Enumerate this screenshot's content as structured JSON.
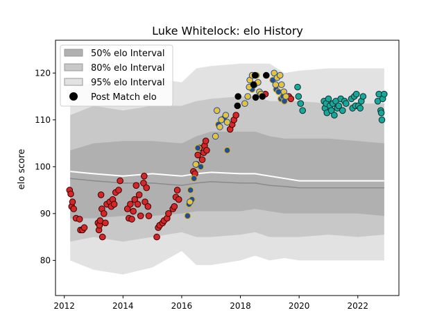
{
  "chart_data": {
    "type": "scatter",
    "title": "Luke Whitelock: elo History",
    "xlabel": "",
    "ylabel": "elo score",
    "xlim": [
      2011.7,
      2023.4
    ],
    "ylim": [
      72.5,
      127.0
    ],
    "x_ticks": [
      2012,
      2014,
      2016,
      2018,
      2020,
      2022
    ],
    "y_ticks": [
      80,
      90,
      100,
      110,
      120
    ],
    "legend": {
      "placement": "top-left",
      "entries": [
        "50% elo Interval",
        "80% elo Interval",
        "95% elo Interval",
        "Post Match elo"
      ]
    },
    "colors": {
      "interval_50": "#b0b0b0",
      "interval_80": "#c8c8c8",
      "interval_95": "#e2e2e2",
      "median_line": "#ffffff",
      "mean_line": "#8a8a8a",
      "red_fill": "#d62728",
      "red_edge": "#3a0000",
      "blue_fill": "#1f4e9c",
      "blue_edge": "#e6b400",
      "yellow_fill": "#e8c33a",
      "yellow_edge": "#1f4e9c",
      "black_fill": "#000000",
      "teal_fill": "#17a89c",
      "teal_edge": "#0b2e2c"
    },
    "interval_bands": {
      "x": [
        2012.2,
        2013.0,
        2014.0,
        2015.0,
        2016.0,
        2016.5,
        2017.0,
        2018.0,
        2018.5,
        2019.0,
        2019.5,
        2020.0,
        2021.0,
        2022.0,
        2022.9
      ],
      "p95_low": [
        80.0,
        78.0,
        77.0,
        78.5,
        82.0,
        79.0,
        79.0,
        80.0,
        81.0,
        80.0,
        80.5,
        80.0,
        80.0,
        80.0,
        80.0
      ],
      "p95_high": [
        117.0,
        118.0,
        119.0,
        119.0,
        118.0,
        121.0,
        121.5,
        122.0,
        122.0,
        122.0,
        120.0,
        120.5,
        121.0,
        121.0,
        121.0
      ],
      "p80_low": [
        84.0,
        85.0,
        84.0,
        85.0,
        86.0,
        85.0,
        85.0,
        85.5,
        86.0,
        85.0,
        85.0,
        85.0,
        85.5,
        85.0,
        85.5
      ],
      "p80_high": [
        111.0,
        113.0,
        112.0,
        113.0,
        113.0,
        114.0,
        114.5,
        115.0,
        115.0,
        114.0,
        114.0,
        114.0,
        113.5,
        113.5,
        113.5
      ],
      "p50_low": [
        89.0,
        89.0,
        89.5,
        89.5,
        90.0,
        90.5,
        90.5,
        90.5,
        91.0,
        90.5,
        90.0,
        90.0,
        90.0,
        90.0,
        89.5
      ],
      "p50_high": [
        103.5,
        105.0,
        105.5,
        105.5,
        105.0,
        106.5,
        107.5,
        107.5,
        107.5,
        106.5,
        106.0,
        106.0,
        106.0,
        105.5,
        105.0
      ],
      "median": [
        99.0,
        98.5,
        98.0,
        98.5,
        98.0,
        98.5,
        98.8,
        98.5,
        98.5,
        98.0,
        97.5,
        97.0,
        97.0,
        97.0,
        97.0
      ],
      "mean": [
        97.5,
        97.0,
        96.5,
        96.5,
        96.0,
        96.5,
        96.8,
        96.5,
        96.5,
        96.0,
        95.8,
        95.5,
        95.5,
        95.5,
        95.5
      ]
    },
    "series": [
      {
        "group": "red",
        "points": [
          [
            2012.18,
            95.0
          ],
          [
            2012.22,
            94.2
          ],
          [
            2012.25,
            91.5
          ],
          [
            2012.28,
            92.5
          ],
          [
            2012.32,
            91.0
          ],
          [
            2012.4,
            89.0
          ],
          [
            2012.52,
            88.8
          ],
          [
            2012.55,
            86.5
          ],
          [
            2012.62,
            86.5
          ],
          [
            2012.68,
            87.0
          ],
          [
            2013.15,
            88.0
          ],
          [
            2013.18,
            86.5
          ],
          [
            2013.2,
            87.5
          ],
          [
            2013.22,
            88.5
          ],
          [
            2013.25,
            94.0
          ],
          [
            2013.28,
            91.0
          ],
          [
            2013.3,
            85.0
          ],
          [
            2013.35,
            90.0
          ],
          [
            2013.4,
            88.0
          ],
          [
            2013.45,
            92.0
          ],
          [
            2013.55,
            92.5
          ],
          [
            2013.6,
            91.5
          ],
          [
            2013.65,
            93.0
          ],
          [
            2013.7,
            92.0
          ],
          [
            2013.75,
            94.5
          ],
          [
            2013.85,
            95.0
          ],
          [
            2013.9,
            97.0
          ],
          [
            2014.15,
            91.0
          ],
          [
            2014.2,
            89.0
          ],
          [
            2014.25,
            92.0
          ],
          [
            2014.3,
            88.8
          ],
          [
            2014.35,
            90.5
          ],
          [
            2014.4,
            93.0
          ],
          [
            2014.45,
            96.0
          ],
          [
            2014.5,
            92.0
          ],
          [
            2014.55,
            94.0
          ],
          [
            2014.6,
            89.5
          ],
          [
            2014.7,
            96.5
          ],
          [
            2014.72,
            98.0
          ],
          [
            2014.75,
            92.5
          ],
          [
            2014.8,
            95.5
          ],
          [
            2014.85,
            91.5
          ],
          [
            2014.88,
            89.5
          ],
          [
            2015.15,
            85.0
          ],
          [
            2015.2,
            87.0
          ],
          [
            2015.25,
            87.5
          ],
          [
            2015.35,
            88.0
          ],
          [
            2015.4,
            88.5
          ],
          [
            2015.5,
            89.0
          ],
          [
            2015.55,
            90.0
          ],
          [
            2015.7,
            91.0
          ],
          [
            2015.75,
            91.5
          ],
          [
            2015.8,
            93.5
          ],
          [
            2015.85,
            95.0
          ],
          [
            2015.9,
            93.0
          ],
          [
            2016.4,
            99.0
          ],
          [
            2016.45,
            98.5
          ],
          [
            2016.5,
            100.5
          ],
          [
            2016.55,
            102.5
          ],
          [
            2016.6,
            104.0
          ],
          [
            2016.7,
            101.5
          ],
          [
            2016.75,
            103.0
          ],
          [
            2016.78,
            104.5
          ],
          [
            2016.82,
            105.5
          ],
          [
            2016.85,
            103.5
          ],
          [
            2017.65,
            108.0
          ],
          [
            2017.72,
            109.0
          ],
          [
            2017.78,
            110.0
          ],
          [
            2017.85,
            111.0
          ],
          [
            2018.85,
            115.5
          ],
          [
            2019.65,
            115.0
          ],
          [
            2019.72,
            114.5
          ]
        ]
      },
      {
        "group": "blue",
        "points": [
          [
            2016.2,
            89.5
          ],
          [
            2016.25,
            92.0
          ],
          [
            2016.3,
            95.0
          ],
          [
            2016.35,
            93.0
          ],
          [
            2016.42,
            97.5
          ],
          [
            2016.55,
            104.0
          ],
          [
            2016.65,
            100.0
          ],
          [
            2017.25,
            109.0
          ],
          [
            2017.45,
            110.5
          ],
          [
            2017.55,
            103.5
          ],
          [
            2018.4,
            116.5
          ],
          [
            2018.55,
            119.5
          ],
          [
            2019.1,
            118.5
          ],
          [
            2019.22,
            116.5
          ],
          [
            2019.3,
            116.0
          ],
          [
            2019.38,
            114.5
          ],
          [
            2019.45,
            115.0
          ],
          [
            2019.5,
            114.0
          ]
        ]
      },
      {
        "group": "yellow",
        "points": [
          [
            2016.28,
            92.5
          ],
          [
            2016.48,
            100.5
          ],
          [
            2017.15,
            106.5
          ],
          [
            2017.2,
            112.0
          ],
          [
            2017.3,
            108.5
          ],
          [
            2017.35,
            110.0
          ],
          [
            2017.5,
            111.0
          ],
          [
            2017.55,
            109.5
          ],
          [
            2018.15,
            113.5
          ],
          [
            2018.25,
            115.0
          ],
          [
            2018.3,
            117.0
          ],
          [
            2018.32,
            118.5
          ],
          [
            2018.4,
            119.5
          ],
          [
            2018.48,
            117.5
          ],
          [
            2018.6,
            118.0
          ],
          [
            2018.65,
            116.0
          ],
          [
            2018.7,
            115.5
          ],
          [
            2019.15,
            120.0
          ],
          [
            2019.2,
            117.5
          ],
          [
            2019.25,
            119.0
          ],
          [
            2019.35,
            119.5
          ],
          [
            2019.4,
            117.5
          ],
          [
            2019.48,
            116.0
          ],
          [
            2019.55,
            115.0
          ]
        ]
      },
      {
        "group": "black",
        "points": [
          [
            2017.9,
            113.0
          ],
          [
            2017.92,
            115.0
          ],
          [
            2018.45,
            117.5
          ],
          [
            2018.5,
            119.5
          ],
          [
            2018.52,
            114.8
          ],
          [
            2018.75,
            115.0
          ],
          [
            2018.88,
            119.5
          ]
        ]
      },
      {
        "group": "teal",
        "points": [
          [
            2019.95,
            117.0
          ],
          [
            2019.98,
            115.0
          ],
          [
            2020.05,
            113.5
          ],
          [
            2020.12,
            112.0
          ],
          [
            2020.85,
            114.0
          ],
          [
            2020.88,
            112.5
          ],
          [
            2020.92,
            113.5
          ],
          [
            2020.95,
            111.5
          ],
          [
            2021.0,
            114.5
          ],
          [
            2021.05,
            113.0
          ],
          [
            2021.1,
            112.0
          ],
          [
            2021.15,
            113.5
          ],
          [
            2021.2,
            111.0
          ],
          [
            2021.25,
            114.0
          ],
          [
            2021.3,
            112.5
          ],
          [
            2021.35,
            113.0
          ],
          [
            2021.42,
            114.5
          ],
          [
            2021.48,
            112.0
          ],
          [
            2021.55,
            114.0
          ],
          [
            2021.6,
            113.5
          ],
          [
            2021.78,
            114.5
          ],
          [
            2021.82,
            112.5
          ],
          [
            2021.88,
            115.0
          ],
          [
            2021.92,
            113.0
          ],
          [
            2021.95,
            115.5
          ],
          [
            2022.02,
            113.0
          ],
          [
            2022.08,
            112.5
          ],
          [
            2022.12,
            114.0
          ],
          [
            2022.18,
            115.0
          ],
          [
            2022.68,
            114.0
          ],
          [
            2022.72,
            115.5
          ],
          [
            2022.78,
            112.0
          ],
          [
            2022.82,
            110.0
          ],
          [
            2022.85,
            114.5
          ],
          [
            2022.9,
            115.5
          ],
          [
            2022.8,
            111.5
          ]
        ]
      }
    ]
  }
}
